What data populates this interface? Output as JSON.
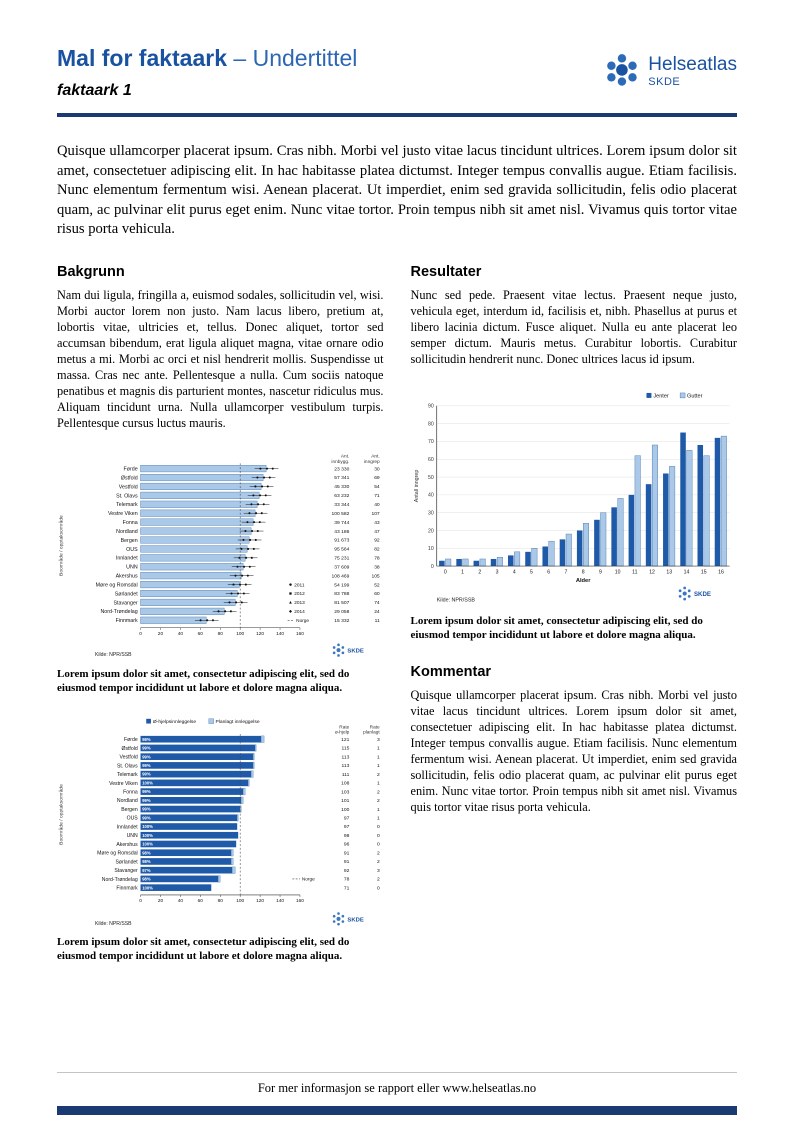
{
  "header": {
    "title": "Mal for faktaark",
    "subtitle": "– Undertittel",
    "doc_label": "faktaark 1",
    "logo_name": "Helseatlas",
    "logo_sub": "SKDE"
  },
  "colors": {
    "brand_blue": "#1a52a2",
    "navy": "#1b3a73",
    "bar_dark": "#1f5aa8",
    "bar_light": "#aac8e8",
    "bar_stroke": "#3c6ea5"
  },
  "intro": "Quisque ullamcorper placerat ipsum. Cras nibh. Morbi vel justo vitae lacus tincidunt ultrices. Lorem ipsum dolor sit amet, consectetuer adipiscing elit. In hac habitasse platea dictumst. Integer tempus convallis augue. Etiam facilisis. Nunc elementum fermentum wisi. Aenean placerat. Ut imperdiet, enim sed gravida sollicitudin, felis odio placerat quam, ac pulvinar elit purus eget enim. Nunc vitae tortor. Proin tempus nibh sit amet nisl. Vivamus quis tortor vitae risus porta vehicula.",
  "sections": {
    "bakgrunn": {
      "heading": "Bakgrunn",
      "body": "Nam dui ligula, fringilla a, euismod sodales, sollicitudin vel, wisi. Morbi auctor lorem non justo. Nam lacus libero, pretium at, lobortis vitae, ultricies et, tellus. Donec aliquet, tortor sed accumsan bibendum, erat ligula aliquet magna, vitae ornare odio metus a mi. Morbi ac orci et nisl hendrerit mollis. Suspendisse ut massa. Cras nec ante. Pellentesque a nulla. Cum sociis natoque penatibus et magnis dis parturient montes, nascetur ridiculus mus. Aliquam tincidunt urna. Nulla ullamcorper vestibulum turpis. Pellentesque cursus luctus mauris."
    },
    "resultater": {
      "heading": "Resultater",
      "body": "Nunc sed pede. Praesent vitae lectus. Praesent neque justo, vehicula eget, interdum id, facilisis et, nibh. Phasellus at purus et libero lacinia dictum. Fusce aliquet. Nulla eu ante placerat leo semper dictum. Mauris metus. Curabitur lobortis. Curabitur sollicitudin hendrerit nunc. Donec ultrices lacus id ipsum."
    },
    "kommentar": {
      "heading": "Kommentar",
      "body": "Quisque ullamcorper placerat ipsum. Cras nibh. Morbi vel justo vitae lacus tincidunt ultrices. Lorem ipsum dolor sit amet, consectetuer adipiscing elit. In hac habitasse platea dictumst. Integer tempus convallis augue. Etiam facilisis. Nunc elementum fermentum wisi. Aenean placerat. Ut imperdiet, enim sed gravida sollicitudin, felis odio placerat quam, ac pulvinar elit purus eget enim. Nunc vitae tortor. Proin tempus nibh sit amet nisl. Vivamus quis tortor vitae risus porta vehicula."
    }
  },
  "figures": {
    "caption1": "Lorem ipsum dolor sit amet, consectetur adipiscing elit, sed do eiusmod tempor incididunt ut labore et dolore magna aliqua.",
    "caption2": "Lorem ipsum dolor sit amet, consectetur adipiscing elit, sed do eiusmod tempor incididunt ut labore et dolore magna aliqua.",
    "caption3": "Lorem ipsum dolor sit amet, consectetur adipiscing elit, sed do eiusmod tempor incididunt ut labore et dolore magna aliqua."
  },
  "footer": {
    "text_prefix": "For mer informasjon se rapport eller ",
    "link": "www.helseatlas.no"
  },
  "chart_data": [
    {
      "id": "rates-by-area",
      "type": "bar",
      "orientation": "horizontal",
      "ylabel": "Boområde / opptaksområde",
      "xlim": [
        0,
        160
      ],
      "xticks": [
        0,
        20,
        40,
        60,
        80,
        100,
        120,
        140,
        160
      ],
      "categories": [
        "Førde",
        "Østfold",
        "Vestfold",
        "St. Olavs",
        "Telemark",
        "Vestre Viken",
        "Fonna",
        "Nordland",
        "Bergen",
        "OUS",
        "Innlandet",
        "UNN",
        "Akershus",
        "Møre og Romsdal",
        "Sørlandet",
        "Stavanger",
        "Nord-Trøndelag",
        "Finnmark"
      ],
      "values": [
        126,
        123,
        121,
        119,
        117,
        115,
        113,
        111,
        109,
        107,
        105,
        103,
        101,
        99,
        97,
        95,
        84,
        66
      ],
      "table": {
        "col1_header": [
          "Ant.",
          "innbygg."
        ],
        "col2_header": [
          "Ant.",
          "inngrep"
        ],
        "innbyggere": [
          "23 330",
          "57 341",
          "45 330",
          "63 232",
          "33 344",
          "100 582",
          "39 744",
          "43 186",
          "91 673",
          "95 564",
          "75 231",
          "37 609",
          "108 469",
          "54 199",
          "83 788",
          "81 507",
          "29 058",
          "15 332"
        ],
        "inngrep": [
          "30",
          "69",
          "54",
          "71",
          "40",
          "107",
          "43",
          "47",
          "92",
          "82",
          "78",
          "38",
          "105",
          "52",
          "60",
          "74",
          "24",
          "11"
        ]
      },
      "legend_years": [
        "2011",
        "2012",
        "2013",
        "2014"
      ],
      "norge_value": 100,
      "norge_label": "Norge",
      "source": "Kilde: NPR/SSB"
    },
    {
      "id": "age-distribution",
      "type": "bar",
      "orientation": "vertical",
      "xlabel": "Alder",
      "ylabel": "Antall inngrep",
      "ylim": [
        0,
        90
      ],
      "yticks": [
        0,
        10,
        20,
        30,
        40,
        50,
        60,
        70,
        80,
        90
      ],
      "categories": [
        "0",
        "1",
        "2",
        "3",
        "4",
        "5",
        "6",
        "7",
        "8",
        "9",
        "10",
        "11",
        "12",
        "13",
        "14",
        "15",
        "16"
      ],
      "series": [
        {
          "name": "Jenter",
          "values": [
            3,
            4,
            3,
            4,
            6,
            8,
            11,
            15,
            20,
            26,
            33,
            40,
            46,
            52,
            75,
            68,
            72
          ]
        },
        {
          "name": "Gutter",
          "values": [
            4,
            4,
            4,
            5,
            8,
            10,
            14,
            18,
            24,
            30,
            38,
            62,
            68,
            56,
            65,
            62,
            73
          ]
        }
      ],
      "source": "Kilde: NPR/SSB"
    },
    {
      "id": "admission-types",
      "type": "bar",
      "orientation": "horizontal",
      "ylabel": "Boområde / opptaksområde",
      "xlim": [
        0,
        160
      ],
      "xticks": [
        0,
        20,
        40,
        60,
        80,
        100,
        120,
        140,
        160
      ],
      "categories": [
        "Førde",
        "Østfold",
        "Vestfold",
        "St. Olavs",
        "Telemark",
        "Vestre Viken",
        "Fonna",
        "Nordland",
        "Bergen",
        "OUS",
        "Innlandet",
        "UNN",
        "Akershus",
        "Møre og Romsdal",
        "Sørlandet",
        "Stavanger",
        "Nord-Trøndelag",
        "Finnmark"
      ],
      "series": [
        {
          "name": "Ø-hjelpsinnleggelse",
          "values": [
            121,
            115,
            113,
            113,
            111,
            108,
            103,
            101,
            100,
            97,
            97,
            98,
            96,
            91,
            91,
            92,
            78,
            71
          ]
        },
        {
          "name": "Planlagt innleggelse",
          "values": [
            3,
            1,
            1,
            1,
            2,
            1,
            2,
            2,
            1,
            1,
            0,
            0,
            0,
            2,
            2,
            3,
            2,
            0
          ]
        }
      ],
      "bar_labels": [
        "98%",
        "99%",
        "99%",
        "99%",
        "99%",
        "100%",
        "99%",
        "99%",
        "99%",
        "99%",
        "100%",
        "100%",
        "100%",
        "98%",
        "98%",
        "97%",
        "98%",
        "100%"
      ],
      "table": {
        "col1_header": [
          "Rate",
          "ø-hjelp"
        ],
        "col2_header": [
          "Rate",
          "planlagt"
        ],
        "ohjelp": [
          "121",
          "115",
          "113",
          "113",
          "111",
          "108",
          "103",
          "101",
          "100",
          "97",
          "97",
          "98",
          "96",
          "91",
          "91",
          "92",
          "78",
          "71"
        ],
        "planlagt": [
          "3",
          "1",
          "1",
          "1",
          "2",
          "1",
          "2",
          "2",
          "1",
          "1",
          "0",
          "0",
          "0",
          "2",
          "2",
          "3",
          "2",
          "0"
        ]
      },
      "norge_value": 100,
      "norge_label": "Norge",
      "source": "Kilde: NPR/SSB"
    }
  ]
}
